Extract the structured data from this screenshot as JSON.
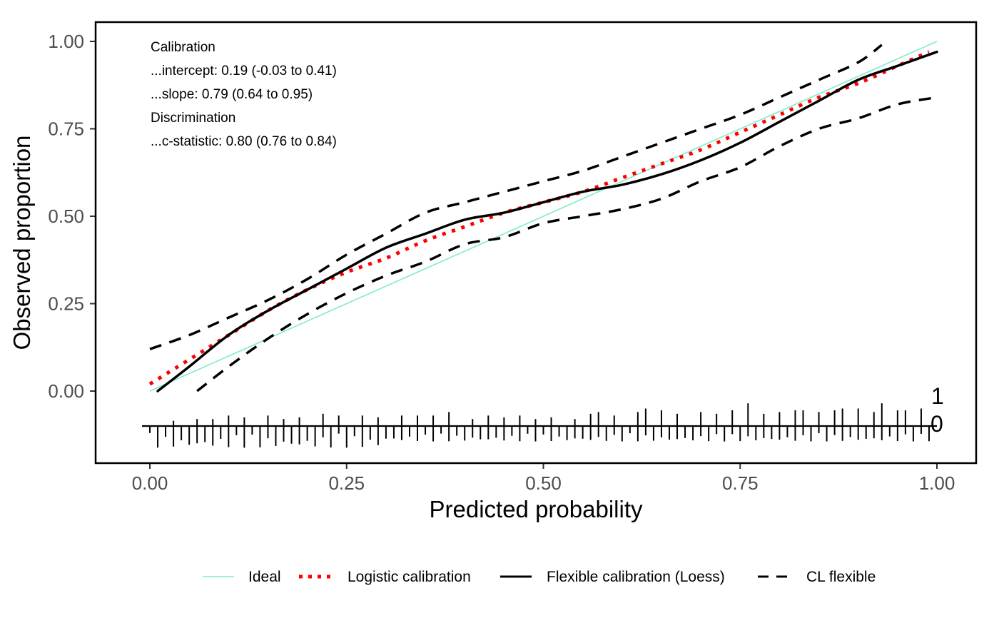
{
  "chart_data": {
    "type": "line",
    "xlabel": "Predicted probability",
    "ylabel": "Observed proportion",
    "xlim": [
      -0.07,
      1.05
    ],
    "ylim": [
      -0.41,
      1.06
    ],
    "x_ticks": [
      0,
      0.25,
      0.5,
      0.75,
      1
    ],
    "x_tick_labels": [
      "0.00",
      "0.25",
      "0.50",
      "0.75",
      "1.00"
    ],
    "y_ticks": [
      0,
      0.25,
      0.5,
      0.75,
      1
    ],
    "y_tick_labels": [
      "0.00",
      "0.25",
      "0.50",
      "0.75",
      "1.00"
    ],
    "grid": false,
    "legend_position": "bottom",
    "annotations": [
      "Calibration",
      "...intercept: 0.19 (-0.03 to 0.41)",
      "...slope: 0.79 (0.64 to 0.95)",
      "Discrimination",
      "...c-statistic: 0.80 (0.76 to 0.84)"
    ],
    "series": [
      {
        "name": "Ideal",
        "style": "solid-thin",
        "color": "#7fecc8",
        "x": [
          0,
          1
        ],
        "y": [
          0,
          1
        ]
      },
      {
        "name": "Logistic calibration",
        "style": "dotted",
        "color": "#ff0000",
        "x": [
          0.0,
          0.05,
          0.1,
          0.15,
          0.2,
          0.25,
          0.3,
          0.35,
          0.4,
          0.45,
          0.5,
          0.55,
          0.6,
          0.65,
          0.7,
          0.75,
          0.8,
          0.85,
          0.9,
          0.95,
          0.99
        ],
        "y": [
          0.02,
          0.09,
          0.16,
          0.23,
          0.29,
          0.34,
          0.38,
          0.43,
          0.47,
          0.51,
          0.54,
          0.57,
          0.61,
          0.65,
          0.69,
          0.74,
          0.79,
          0.84,
          0.88,
          0.93,
          0.97
        ]
      },
      {
        "name": "Flexible calibration (Loess)",
        "style": "solid",
        "color": "#000000",
        "x": [
          0.01,
          0.05,
          0.1,
          0.15,
          0.2,
          0.25,
          0.3,
          0.35,
          0.4,
          0.45,
          0.5,
          0.55,
          0.6,
          0.65,
          0.7,
          0.75,
          0.8,
          0.85,
          0.9,
          0.95,
          1.0
        ],
        "y": [
          0.0,
          0.07,
          0.16,
          0.23,
          0.29,
          0.35,
          0.41,
          0.45,
          0.49,
          0.51,
          0.54,
          0.57,
          0.59,
          0.62,
          0.66,
          0.71,
          0.77,
          0.83,
          0.89,
          0.93,
          0.97
        ]
      },
      {
        "name": "CL flexible",
        "style": "dashed",
        "color": "#000000",
        "x": [
          0.0,
          0.05,
          0.1,
          0.15,
          0.2,
          0.25,
          0.3,
          0.35,
          0.4,
          0.45,
          0.5,
          0.55,
          0.6,
          0.65,
          0.7,
          0.75,
          0.8,
          0.85,
          0.9,
          0.93
        ],
        "y": [
          0.12,
          0.16,
          0.21,
          0.26,
          0.32,
          0.39,
          0.45,
          0.51,
          0.54,
          0.57,
          0.6,
          0.63,
          0.67,
          0.71,
          0.75,
          0.79,
          0.84,
          0.89,
          0.94,
          0.99
        ]
      },
      {
        "name": "CL flexible",
        "style": "dashed",
        "color": "#000000",
        "x": [
          0.06,
          0.1,
          0.15,
          0.2,
          0.25,
          0.3,
          0.35,
          0.4,
          0.45,
          0.5,
          0.55,
          0.6,
          0.65,
          0.7,
          0.75,
          0.8,
          0.85,
          0.9,
          0.95,
          1.0
        ],
        "y": [
          0.0,
          0.07,
          0.15,
          0.22,
          0.28,
          0.33,
          0.37,
          0.42,
          0.44,
          0.48,
          0.5,
          0.52,
          0.55,
          0.6,
          0.64,
          0.7,
          0.75,
          0.78,
          0.82,
          0.84
        ]
      }
    ],
    "rug": {
      "labels": [
        "1",
        "0"
      ],
      "outcome_1_x": [
        0.03,
        0.06,
        0.08,
        0.1,
        0.12,
        0.15,
        0.17,
        0.19,
        0.22,
        0.24,
        0.27,
        0.29,
        0.32,
        0.34,
        0.36,
        0.38,
        0.41,
        0.43,
        0.45,
        0.47,
        0.49,
        0.51,
        0.54,
        0.56,
        0.57,
        0.59,
        0.62,
        0.63,
        0.65,
        0.67,
        0.7,
        0.72,
        0.74,
        0.76,
        0.78,
        0.8,
        0.82,
        0.83,
        0.85,
        0.87,
        0.88,
        0.9,
        0.92,
        0.93,
        0.95,
        0.96,
        0.98
      ],
      "outcome_1_h": [
        0.015,
        0.02,
        0.02,
        0.03,
        0.025,
        0.03,
        0.02,
        0.025,
        0.035,
        0.03,
        0.03,
        0.025,
        0.03,
        0.03,
        0.03,
        0.04,
        0.02,
        0.03,
        0.025,
        0.03,
        0.02,
        0.025,
        0.02,
        0.035,
        0.04,
        0.03,
        0.04,
        0.05,
        0.045,
        0.035,
        0.04,
        0.035,
        0.045,
        0.065,
        0.035,
        0.04,
        0.045,
        0.045,
        0.04,
        0.045,
        0.05,
        0.05,
        0.04,
        0.065,
        0.045,
        0.045,
        0.05
      ]
    },
    "colors": {
      "ideal": "#7fecc8",
      "logistic": "#ff0000",
      "flexible": "#000000",
      "axis_text": "#4d4d4d"
    }
  }
}
